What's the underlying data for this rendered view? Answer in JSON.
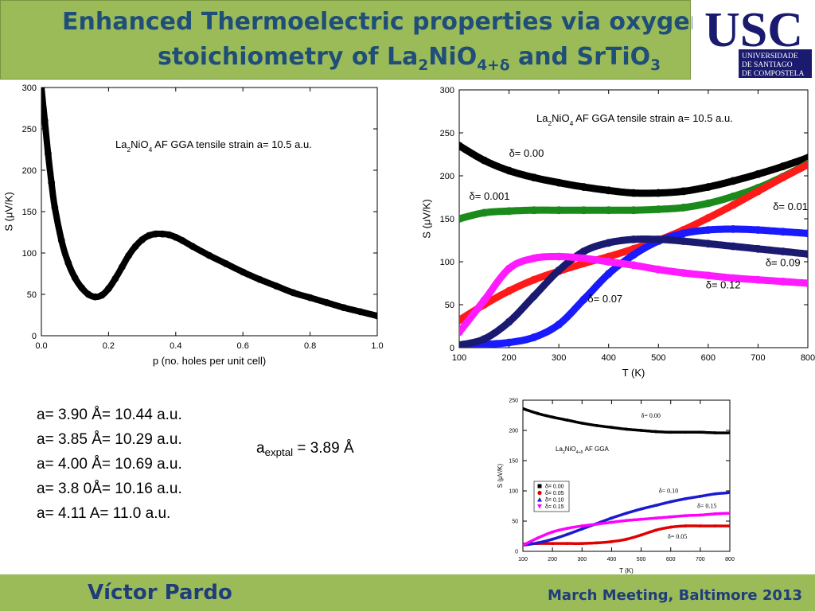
{
  "header": {
    "title_line1": "Enhanced Thermoelectric properties via oxygen",
    "title_line2_pre": "stoichiometry of La",
    "title_line2_sub1": "2",
    "title_line2_mid": "NiO",
    "title_line2_sub2": "4+δ",
    "title_line2_post": "  and SrTiO",
    "title_line2_sub3": "3"
  },
  "logo": {
    "main": "USC",
    "line1": "UNIVERSIDADE",
    "line2": "DE SANTIAGO",
    "line3": "DE COMPOSTELA",
    "color": "#1a1a6e"
  },
  "footer": {
    "author": "Víctor Pardo",
    "conference": "March Meeting, Baltimore 2013"
  },
  "lattice_list": [
    "a= 3.90 Å= 10.44 a.u.",
    "a= 3.85 Å= 10.29 a.u.",
    "a= 4.00 Å= 10.69 a.u.",
    "a= 3.8 0Å= 10.16 a.u.",
    "a= 4.11 A= 11.0 a.u."
  ],
  "a_exptal": {
    "prefix": "a",
    "sub": "exptal",
    "suffix": " = 3.89 Å"
  },
  "chart_data": [
    {
      "type": "line",
      "xlabel": "p (no. holes per unit cell)",
      "ylabel": "S (μV/K)",
      "xlim": [
        0,
        1
      ],
      "ylim": [
        0,
        300
      ],
      "xticks": [
        "0.0",
        "0.2",
        "0.4",
        "0.6",
        "0.8",
        "1.0"
      ],
      "yticks": [
        "0",
        "50",
        "100",
        "150",
        "200",
        "250",
        "300"
      ],
      "annotation": {
        "base": "La",
        "sub1": "2",
        "mid": "NiO",
        "sub2": "4",
        "rest": " AF GGA tensile strain a= 10.5 a.u."
      },
      "series": [
        {
          "color": "#000000",
          "x": [
            0.0,
            0.01,
            0.02,
            0.03,
            0.04,
            0.06,
            0.08,
            0.1,
            0.12,
            0.14,
            0.16,
            0.18,
            0.2,
            0.22,
            0.24,
            0.26,
            0.28,
            0.3,
            0.32,
            0.34,
            0.36,
            0.38,
            0.4,
            0.42,
            0.45,
            0.5,
            0.55,
            0.6,
            0.65,
            0.7,
            0.75,
            0.8,
            0.85,
            0.9,
            0.95,
            1.0
          ],
          "y": [
            300,
            260,
            220,
            185,
            155,
            115,
            88,
            70,
            58,
            50,
            47,
            49,
            57,
            69,
            83,
            97,
            108,
            116,
            121,
            123,
            123,
            122,
            119,
            115,
            108,
            97,
            87,
            77,
            68,
            60,
            52,
            46,
            40,
            34,
            29,
            24
          ]
        }
      ]
    },
    {
      "type": "line",
      "xlabel": "T (K)",
      "ylabel": "S (μV/K)",
      "xlim": [
        100,
        800
      ],
      "ylim": [
        0,
        300
      ],
      "xticks": [
        "100",
        "200",
        "300",
        "400",
        "500",
        "600",
        "700",
        "800"
      ],
      "yticks": [
        "0",
        "50",
        "100",
        "150",
        "200",
        "250",
        "300"
      ],
      "annotation": {
        "base": "La",
        "sub1": "2",
        "mid": "NiO",
        "sub2": "4",
        "rest": " AF GGA tensile strain a= 10.5 a.u."
      },
      "series": [
        {
          "name": "δ= 0.00",
          "color": "#000000",
          "x": [
            100,
            150,
            200,
            250,
            300,
            350,
            400,
            450,
            500,
            550,
            600,
            650,
            700,
            750,
            800
          ],
          "y": [
            235,
            218,
            206,
            198,
            192,
            187,
            183,
            180,
            180,
            182,
            187,
            194,
            202,
            211,
            221
          ]
        },
        {
          "name": "δ= 0.001",
          "color": "#1a8a1a",
          "x": [
            100,
            150,
            200,
            250,
            300,
            350,
            400,
            450,
            500,
            550,
            600,
            650,
            700,
            750,
            800
          ],
          "y": [
            150,
            157,
            159,
            160,
            160,
            160,
            160,
            160,
            161,
            163,
            168,
            176,
            186,
            199,
            214
          ]
        },
        {
          "name": "δ= 0.01",
          "color": "#ff1a1a",
          "x": [
            100,
            150,
            200,
            250,
            300,
            350,
            400,
            450,
            500,
            550,
            600,
            650,
            700,
            750,
            800
          ],
          "y": [
            32,
            50,
            66,
            79,
            89,
            98,
            106,
            115,
            125,
            137,
            151,
            166,
            182,
            198,
            213
          ]
        },
        {
          "name": "δ= 0.07",
          "color": "#1a1aff",
          "x": [
            100,
            150,
            200,
            250,
            300,
            350,
            400,
            450,
            500,
            550,
            600,
            650,
            700,
            750,
            800
          ],
          "y": [
            3,
            4,
            6,
            12,
            27,
            56,
            86,
            108,
            124,
            133,
            137,
            138,
            137,
            135,
            133
          ]
        },
        {
          "name": "δ= 0.09",
          "color": "#1a1a70",
          "x": [
            100,
            150,
            200,
            250,
            300,
            350,
            400,
            450,
            500,
            550,
            600,
            650,
            700,
            750,
            800
          ],
          "y": [
            3,
            10,
            30,
            60,
            90,
            112,
            122,
            126,
            126,
            124,
            121,
            118,
            115,
            112,
            109
          ]
        },
        {
          "name": "δ= 0.12",
          "color": "#ff1aff",
          "x": [
            100,
            150,
            200,
            250,
            300,
            350,
            400,
            450,
            500,
            550,
            600,
            650,
            700,
            750,
            800
          ],
          "y": [
            18,
            55,
            92,
            104,
            106,
            104,
            100,
            96,
            91,
            87,
            84,
            81,
            79,
            77,
            75
          ]
        }
      ],
      "labels": [
        {
          "text": "δ= 0.00",
          "x": 200,
          "y": 222
        },
        {
          "text": "δ= 0.001",
          "x": 120,
          "y": 172
        },
        {
          "text": "δ= 0.01",
          "x": 730,
          "y": 160
        },
        {
          "text": "δ= 0.09",
          "x": 715,
          "y": 95
        },
        {
          "text": "δ= 0.12",
          "x": 595,
          "y": 69
        },
        {
          "text": "δ= 0.07",
          "x": 358,
          "y": 53
        }
      ]
    },
    {
      "type": "line",
      "xlabel": "T (K)",
      "ylabel": "S (μV/K)",
      "xlim": [
        100,
        800
      ],
      "ylim": [
        0,
        250
      ],
      "xticks": [
        "100",
        "200",
        "300",
        "400",
        "500",
        "600",
        "700",
        "800"
      ],
      "yticks": [
        "0",
        "50",
        "100",
        "150",
        "200",
        "250"
      ],
      "annotation": {
        "base": "La",
        "sub1": "2",
        "mid": "NiO",
        "sub2": "4+δ",
        "rest": " AF GGA"
      },
      "series": [
        {
          "name": "δ= 0.00",
          "color": "#000000",
          "x": [
            100,
            150,
            200,
            250,
            300,
            350,
            400,
            450,
            500,
            550,
            600,
            650,
            700,
            750,
            800
          ],
          "y": [
            236,
            228,
            222,
            217,
            212,
            208,
            205,
            202,
            200,
            198,
            197,
            197,
            197,
            196,
            196
          ]
        },
        {
          "name": "δ= 0.05",
          "color": "#e00000",
          "x": [
            100,
            150,
            200,
            250,
            300,
            350,
            400,
            450,
            500,
            550,
            600,
            650,
            700,
            750,
            800
          ],
          "y": [
            12,
            13,
            13,
            13,
            13,
            14,
            16,
            20,
            27,
            35,
            40,
            42,
            42,
            42,
            42
          ]
        },
        {
          "name": "δ= 0.10",
          "color": "#1a1ad0",
          "x": [
            100,
            150,
            200,
            250,
            300,
            350,
            400,
            450,
            500,
            550,
            600,
            650,
            700,
            750,
            800
          ],
          "y": [
            10,
            14,
            20,
            28,
            37,
            46,
            55,
            63,
            70,
            76,
            82,
            87,
            91,
            95,
            97
          ]
        },
        {
          "name": "δ= 0.15",
          "color": "#ff00ff",
          "x": [
            100,
            150,
            200,
            250,
            300,
            350,
            400,
            450,
            500,
            550,
            600,
            650,
            700,
            750,
            800
          ],
          "y": [
            10,
            22,
            32,
            38,
            42,
            45,
            48,
            51,
            53,
            55,
            57,
            59,
            60,
            62,
            63
          ]
        }
      ],
      "labels": [
        {
          "text": "δ= 0.00",
          "x": 500,
          "y": 221
        },
        {
          "text": "δ= 0.10",
          "x": 560,
          "y": 97
        },
        {
          "text": "δ= 0.15",
          "x": 690,
          "y": 72
        },
        {
          "text": "δ= 0.05",
          "x": 590,
          "y": 21
        }
      ],
      "legend": [
        "δ= 0.00",
        "δ= 0.05",
        "δ= 0.10",
        "δ= 0.15"
      ]
    }
  ]
}
